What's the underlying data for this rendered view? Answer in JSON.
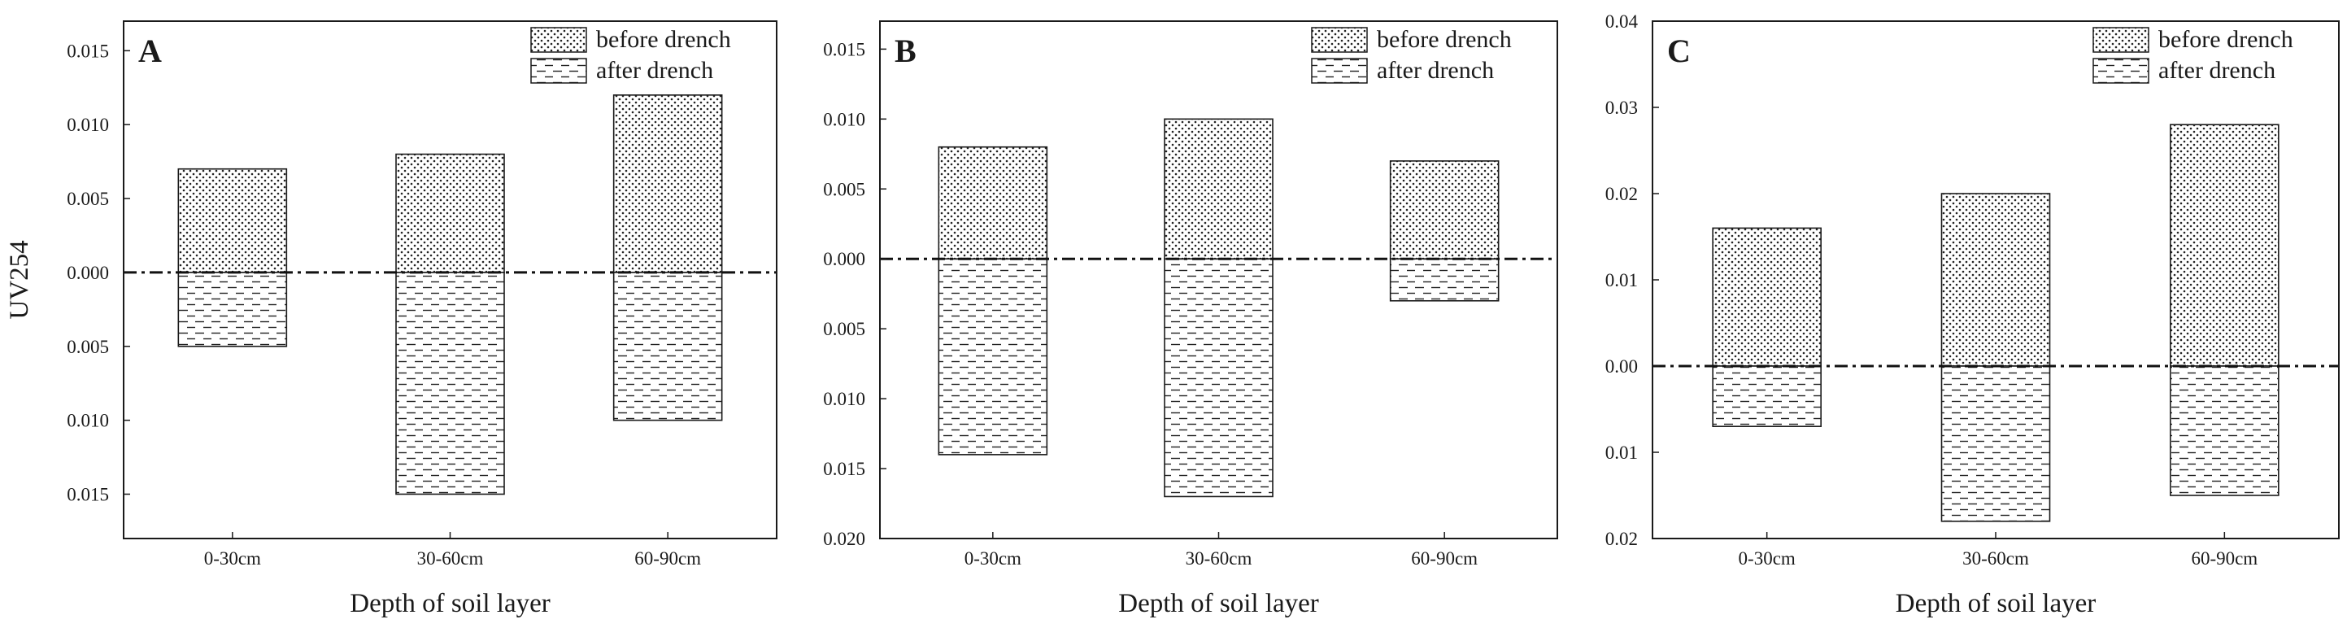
{
  "chart_data": [
    {
      "type": "bar",
      "panel_label": "A",
      "categories": [
        "0-30cm",
        "30-60cm",
        "60-90cm"
      ],
      "series": [
        {
          "name": "before drench",
          "values": [
            0.007,
            0.008,
            0.012
          ]
        },
        {
          "name": "after drench",
          "values": [
            0.005,
            0.015,
            0.01
          ]
        }
      ],
      "ylim": [
        -0.018,
        0.017
      ],
      "yticks": [
        {
          "value": 0.015,
          "label": "0.015"
        },
        {
          "value": 0.01,
          "label": "0.010"
        },
        {
          "value": 0.005,
          "label": "0.005"
        },
        {
          "value": 0.0,
          "label": "0.000"
        },
        {
          "value": -0.005,
          "label": "0.005"
        },
        {
          "value": -0.01,
          "label": "0.010"
        },
        {
          "value": -0.015,
          "label": "0.015"
        }
      ],
      "ylabel": "UV254",
      "xlabel": "Depth of soil layer",
      "reference_line": {
        "value": 0,
        "style": "dash-dot"
      },
      "legend_position": "top-right"
    },
    {
      "type": "bar",
      "panel_label": "B",
      "categories": [
        "0-30cm",
        "30-60cm",
        "60-90cm"
      ],
      "series": [
        {
          "name": "before drench",
          "values": [
            0.008,
            0.01,
            0.007
          ]
        },
        {
          "name": "after drench",
          "values": [
            0.014,
            0.017,
            0.003
          ]
        }
      ],
      "ylim": [
        -0.02,
        0.017
      ],
      "yticks": [
        {
          "value": 0.015,
          "label": "0.015"
        },
        {
          "value": 0.01,
          "label": "0.010"
        },
        {
          "value": 0.005,
          "label": "0.005"
        },
        {
          "value": 0.0,
          "label": "0.000"
        },
        {
          "value": -0.005,
          "label": "0.005"
        },
        {
          "value": -0.01,
          "label": "0.010"
        },
        {
          "value": -0.015,
          "label": "0.015"
        },
        {
          "value": -0.02,
          "label": "0.020"
        }
      ],
      "ylabel": "",
      "xlabel": "Depth of soil layer",
      "reference_line": {
        "value": 0,
        "style": "dash-dot"
      },
      "legend_position": "top-right"
    },
    {
      "type": "bar",
      "panel_label": "C",
      "categories": [
        "0-30cm",
        "30-60cm",
        "60-90cm"
      ],
      "series": [
        {
          "name": "before drench",
          "values": [
            0.016,
            0.02,
            0.028
          ]
        },
        {
          "name": "after drench",
          "values": [
            0.007,
            0.018,
            0.015
          ]
        }
      ],
      "ylim": [
        -0.02,
        0.04
      ],
      "yticks": [
        {
          "value": 0.04,
          "label": "0.04"
        },
        {
          "value": 0.03,
          "label": "0.03"
        },
        {
          "value": 0.02,
          "label": "0.02"
        },
        {
          "value": 0.01,
          "label": "0.01"
        },
        {
          "value": 0.0,
          "label": "0.00"
        },
        {
          "value": -0.01,
          "label": "0.01"
        },
        {
          "value": -0.02,
          "label": "0.02"
        }
      ],
      "ylabel": "",
      "xlabel": "Depth of soil layer",
      "reference_line": {
        "value": 0,
        "style": "dash-dot"
      },
      "legend_position": "top-right"
    }
  ]
}
